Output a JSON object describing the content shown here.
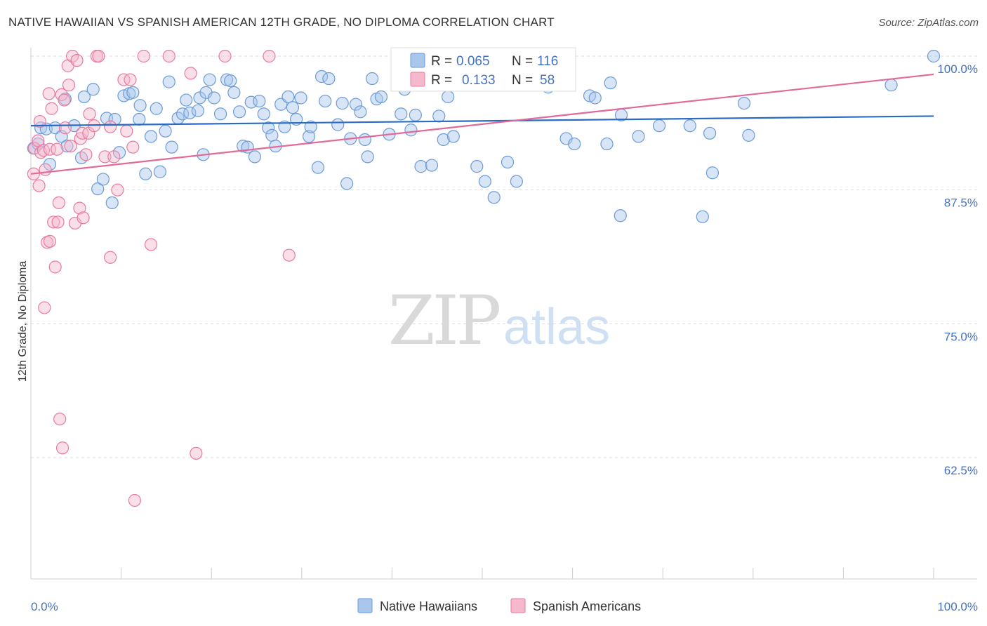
{
  "title": "NATIVE HAWAIIAN VS SPANISH AMERICAN 12TH GRADE, NO DIPLOMA CORRELATION CHART",
  "source": "Source: ZipAtlas.com",
  "watermark": {
    "zip": "ZIP",
    "atlas": "atlas"
  },
  "legend": {
    "rows": [
      {
        "r_label": "R =",
        "r_value": "0.065",
        "n_label": "N =",
        "n_value": "116"
      },
      {
        "r_label": "R =",
        "r_value": "0.133",
        "n_label": "N =",
        "n_value": "58"
      }
    ]
  },
  "bottom_legend": [
    "Native Hawaiians",
    "Spanish Americans"
  ],
  "colors": {
    "blue_fill": "#a9c6ec",
    "blue_stroke": "#6b9bd8",
    "blue_line": "#2a6cc4",
    "pink_fill": "#f5b8cc",
    "pink_stroke": "#e87aa0",
    "pink_line": "#e26a98",
    "tick_text": "#4472c4",
    "grid": "#dddddd"
  },
  "chart_data": {
    "type": "scatter",
    "title": "NATIVE HAWAIIAN VS SPANISH AMERICAN 12TH GRADE, NO DIPLOMA CORRELATION CHART",
    "xlabel": "",
    "ylabel": "12th Grade, No Diploma",
    "xlim": [
      0,
      100
    ],
    "ylim": [
      51.5,
      101
    ],
    "x_tick_labels": [
      "0.0%",
      "100.0%"
    ],
    "y_ticks": [
      62.5,
      75.0,
      87.5,
      100.0
    ],
    "y_tick_labels": [
      "62.5%",
      "75.0%",
      "87.5%",
      "100.0%"
    ],
    "grid": true,
    "legend_position": "top-center",
    "series": [
      {
        "name": "Native Hawaiians",
        "r": 0.065,
        "n": 116,
        "trend": {
          "x": [
            0,
            100
          ],
          "y": [
            93.5,
            94.4
          ]
        },
        "points": [
          [
            0.3,
            91.4
          ],
          [
            0.8,
            91.8
          ],
          [
            1.1,
            93.3
          ],
          [
            1.7,
            93.2
          ],
          [
            2.7,
            93.3
          ],
          [
            3.4,
            92.5
          ],
          [
            4.0,
            91.6
          ],
          [
            4.8,
            93.5
          ],
          [
            5.6,
            90.5
          ],
          [
            3.8,
            96.0
          ],
          [
            5.9,
            96.2
          ],
          [
            6.9,
            96.9
          ],
          [
            8.4,
            94.2
          ],
          [
            9.3,
            94.1
          ],
          [
            7.4,
            87.6
          ],
          [
            8.0,
            88.5
          ],
          [
            9.0,
            86.3
          ],
          [
            9.8,
            91.0
          ],
          [
            10.3,
            96.3
          ],
          [
            10.9,
            96.5
          ],
          [
            11.3,
            96.6
          ],
          [
            12.0,
            94.1
          ],
          [
            12.7,
            89.0
          ],
          [
            13.3,
            92.5
          ],
          [
            13.9,
            95.1
          ],
          [
            14.3,
            89.2
          ],
          [
            14.9,
            93.0
          ],
          [
            15.3,
            97.6
          ],
          [
            15.6,
            91.5
          ],
          [
            16.3,
            94.2
          ],
          [
            16.8,
            94.6
          ],
          [
            17.2,
            95.9
          ],
          [
            17.6,
            94.7
          ],
          [
            18.5,
            94.9
          ],
          [
            18.7,
            96.1
          ],
          [
            19.1,
            90.8
          ],
          [
            19.4,
            96.6
          ],
          [
            19.8,
            97.8
          ],
          [
            20.3,
            96.1
          ],
          [
            21.0,
            94.6
          ],
          [
            21.7,
            97.8
          ],
          [
            22.1,
            97.7
          ],
          [
            22.5,
            96.6
          ],
          [
            23.1,
            94.8
          ],
          [
            23.5,
            91.6
          ],
          [
            24.0,
            91.5
          ],
          [
            24.4,
            95.7
          ],
          [
            24.8,
            90.6
          ],
          [
            25.3,
            95.8
          ],
          [
            25.8,
            94.6
          ],
          [
            26.3,
            93.3
          ],
          [
            26.7,
            92.6
          ],
          [
            27.1,
            91.6
          ],
          [
            27.7,
            95.5
          ],
          [
            28.1,
            93.4
          ],
          [
            28.5,
            96.2
          ],
          [
            29.0,
            95.2
          ],
          [
            29.4,
            94.1
          ],
          [
            29.9,
            96.1
          ],
          [
            30.8,
            92.5
          ],
          [
            31.0,
            93.4
          ],
          [
            31.8,
            89.6
          ],
          [
            32.2,
            98.1
          ],
          [
            32.6,
            95.8
          ],
          [
            33.0,
            97.9
          ],
          [
            34.0,
            93.6
          ],
          [
            34.5,
            95.6
          ],
          [
            35.0,
            88.1
          ],
          [
            35.4,
            92.3
          ],
          [
            36.0,
            95.5
          ],
          [
            36.5,
            94.8
          ],
          [
            37.0,
            92.2
          ],
          [
            37.3,
            90.6
          ],
          [
            37.8,
            97.9
          ],
          [
            38.3,
            96.0
          ],
          [
            38.8,
            96.2
          ],
          [
            39.7,
            92.7
          ],
          [
            41.0,
            94.6
          ],
          [
            41.4,
            96.9
          ],
          [
            42.1,
            93.1
          ],
          [
            42.6,
            94.5
          ],
          [
            43.2,
            89.7
          ],
          [
            43.5,
            97.6
          ],
          [
            44.4,
            89.8
          ],
          [
            45.2,
            94.4
          ],
          [
            45.7,
            92.2
          ],
          [
            46.2,
            96.2
          ],
          [
            46.8,
            92.5
          ],
          [
            49.4,
            89.7
          ],
          [
            50.3,
            88.3
          ],
          [
            51.3,
            86.8
          ],
          [
            52.8,
            90.1
          ],
          [
            53.8,
            88.3
          ],
          [
            57.3,
            97.1
          ],
          [
            59.3,
            92.3
          ],
          [
            60.2,
            91.8
          ],
          [
            61.9,
            96.3
          ],
          [
            62.5,
            96.1
          ],
          [
            63.8,
            91.8
          ],
          [
            64.2,
            97.5
          ],
          [
            65.3,
            85.1
          ],
          [
            65.4,
            94.5
          ],
          [
            67.3,
            92.5
          ],
          [
            69.6,
            93.5
          ],
          [
            73.0,
            93.5
          ],
          [
            74.4,
            85.0
          ],
          [
            75.2,
            92.8
          ],
          [
            79.0,
            95.6
          ],
          [
            79.5,
            92.6
          ],
          [
            95.3,
            97.3
          ],
          [
            100.0,
            100.0
          ],
          [
            75.5,
            89.1
          ],
          [
            2.1,
            89.9
          ],
          [
            12.1,
            95.4
          ]
        ]
      },
      {
        "name": "Spanish Americans",
        "r": 0.133,
        "n": 58,
        "trend": {
          "x": [
            0,
            100
          ],
          "y": [
            89.0,
            98.3
          ]
        },
        "points": [
          [
            0.3,
            89.0
          ],
          [
            0.4,
            91.4
          ],
          [
            0.8,
            92.1
          ],
          [
            0.9,
            87.9
          ],
          [
            1.1,
            91.0
          ],
          [
            1.0,
            93.9
          ],
          [
            1.4,
            91.2
          ],
          [
            1.6,
            89.4
          ],
          [
            1.8,
            82.6
          ],
          [
            2.1,
            82.7
          ],
          [
            2.1,
            91.3
          ],
          [
            2.3,
            95.1
          ],
          [
            2.5,
            84.5
          ],
          [
            2.7,
            80.3
          ],
          [
            2.9,
            91.3
          ],
          [
            3.0,
            84.5
          ],
          [
            3.1,
            86.3
          ],
          [
            3.4,
            96.4
          ],
          [
            3.7,
            95.9
          ],
          [
            3.8,
            93.3
          ],
          [
            4.1,
            99.1
          ],
          [
            4.2,
            97.3
          ],
          [
            4.4,
            91.6
          ],
          [
            4.6,
            100.0
          ],
          [
            4.9,
            84.4
          ],
          [
            5.1,
            99.6
          ],
          [
            5.4,
            85.8
          ],
          [
            5.5,
            92.3
          ],
          [
            5.8,
            84.9
          ],
          [
            5.7,
            92.8
          ],
          [
            6.1,
            90.8
          ],
          [
            6.4,
            92.8
          ],
          [
            6.5,
            94.6
          ],
          [
            7.0,
            93.5
          ],
          [
            7.3,
            100.0
          ],
          [
            7.5,
            100.0
          ],
          [
            8.2,
            90.6
          ],
          [
            8.8,
            93.4
          ],
          [
            9.2,
            90.6
          ],
          [
            9.6,
            87.5
          ],
          [
            10.3,
            97.8
          ],
          [
            10.6,
            93.0
          ],
          [
            11.0,
            97.8
          ],
          [
            11.3,
            91.5
          ],
          [
            13.3,
            82.4
          ],
          [
            15.3,
            100.0
          ],
          [
            17.7,
            98.4
          ],
          [
            21.5,
            100.0
          ],
          [
            26.4,
            100.0
          ],
          [
            28.6,
            81.4
          ],
          [
            1.5,
            76.5
          ],
          [
            3.2,
            66.1
          ],
          [
            3.5,
            63.4
          ],
          [
            11.5,
            58.5
          ],
          [
            18.3,
            62.9
          ],
          [
            8.8,
            81.2
          ],
          [
            2.0,
            96.5
          ],
          [
            12.5,
            100.0
          ]
        ]
      }
    ]
  }
}
